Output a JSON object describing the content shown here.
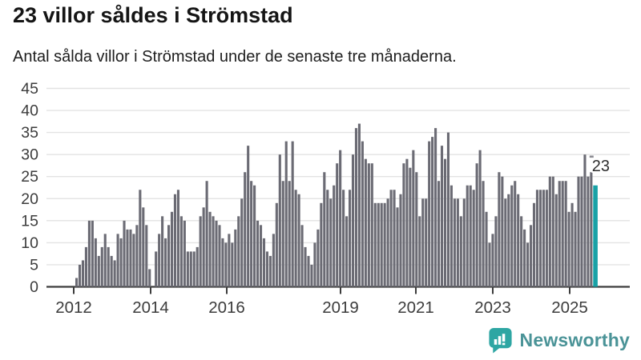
{
  "header": {
    "title": "23 villor såldes i Strömstad",
    "subtitle": "Antal sålda villor i Strömstad under de senaste tre månaderna."
  },
  "chart_data": {
    "type": "bar",
    "title": "23 villor såldes i Strömstad",
    "subtitle": "Antal sålda villor i Strömstad under de senaste tre månaderna.",
    "xlabel": "",
    "ylabel": "",
    "ylim": [
      0,
      45
    ],
    "grid": true,
    "y_ticks": [
      0,
      5,
      10,
      15,
      20,
      25,
      30,
      35,
      40,
      45
    ],
    "x_tick_labels": [
      "2012",
      "2014",
      "2016",
      "2019",
      "2021",
      "2023",
      "2025"
    ],
    "period": "monthly, 2012 to 2025",
    "values": [
      2,
      5,
      6,
      9,
      15,
      15,
      11,
      7,
      9,
      12,
      9,
      7,
      6,
      12,
      11,
      15,
      13,
      13,
      12,
      14,
      22,
      18,
      14,
      4,
      0,
      8,
      12,
      16,
      11,
      14,
      17,
      21,
      22,
      16,
      15,
      8,
      8,
      8,
      9,
      16,
      18,
      24,
      17,
      16,
      15,
      14,
      11,
      10,
      12,
      10,
      13,
      16,
      20,
      26,
      32,
      24,
      23,
      15,
      14,
      11,
      8,
      7,
      12,
      19,
      30,
      24,
      33,
      24,
      33,
      22,
      21,
      14,
      9,
      7,
      5,
      10,
      13,
      19,
      26,
      22,
      20,
      23,
      28,
      31,
      22,
      16,
      22,
      30,
      36,
      37,
      33,
      29,
      28,
      28,
      19,
      19,
      19,
      19,
      20,
      22,
      22,
      18,
      21,
      28,
      29,
      27,
      31,
      26,
      16,
      20,
      20,
      33,
      34,
      36,
      24,
      32,
      29,
      35,
      23,
      20,
      20,
      16,
      20,
      23,
      23,
      22,
      28,
      31,
      24,
      17,
      10,
      12,
      16,
      26,
      25,
      20,
      21,
      23,
      24,
      21,
      16,
      13,
      10,
      14,
      19,
      22,
      22,
      22,
      22,
      25,
      25,
      21,
      24,
      24,
      24,
      17,
      19,
      17,
      25,
      25,
      30,
      25,
      26,
      23
    ],
    "bar_color": "#6b6b74",
    "highlight": {
      "index": 163,
      "value": 23,
      "label": "23",
      "color": "#18a1a6"
    },
    "axis_color": "#3c3c3c",
    "gridline_color": "#e3e3e3",
    "legend": "none"
  },
  "annotation": {
    "latest_value_label": "23"
  },
  "footer": {
    "brand": "Newsworthy",
    "logo_icon": "newsworthy-speech-bubble-bar-chart-icon",
    "icon_color": "#2ea6a3",
    "text_color": "#4a9397"
  }
}
